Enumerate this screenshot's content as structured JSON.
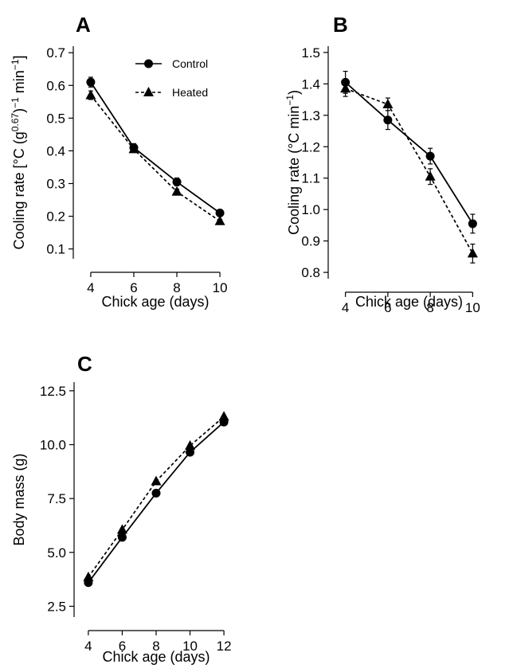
{
  "chart_data": [
    {
      "panel": "A",
      "type": "line",
      "xlabel": "Chick age (days)",
      "ylabel_parts": [
        "Cooling rate [°C (g",
        "0.67",
        ")",
        "−1",
        " min",
        "−1",
        "]"
      ],
      "xlim": [
        3.3,
        10.7
      ],
      "ylim": [
        0.07,
        0.72
      ],
      "xticks": [
        4,
        6,
        8,
        10
      ],
      "yticks": [
        "0.1",
        "0.2",
        "0.3",
        "0.4",
        "0.5",
        "0.6",
        "0.7"
      ],
      "legend": {
        "position": "top",
        "entries": [
          "Control",
          "Heated"
        ]
      },
      "x": [
        4,
        6,
        8,
        10
      ],
      "series": [
        {
          "name": "Control",
          "marker": "circle",
          "line": "solid",
          "values": [
            0.61,
            0.41,
            0.305,
            0.21
          ],
          "errors": [
            0.015,
            0.012,
            0.012,
            0.006
          ]
        },
        {
          "name": "Heated",
          "marker": "triangle",
          "line": "dashed",
          "values": [
            0.57,
            0.405,
            0.275,
            0.185
          ],
          "errors": [
            0.013,
            0.01,
            0.008,
            0.005
          ]
        }
      ]
    },
    {
      "panel": "B",
      "type": "line",
      "xlabel": "Chick age (days)",
      "ylabel_parts": [
        "Cooling rate (°C min",
        "−1",
        ")"
      ],
      "xlim": [
        3.3,
        10.7
      ],
      "ylim": [
        0.78,
        1.52
      ],
      "xticks": [
        4,
        6,
        8,
        10
      ],
      "yticks": [
        "0.8",
        "0.9",
        "1.0",
        "1.1",
        "1.2",
        "1.3",
        "1.4",
        "1.5"
      ],
      "x": [
        4,
        6,
        8,
        10
      ],
      "series": [
        {
          "name": "Control",
          "marker": "circle",
          "line": "solid",
          "values": [
            1.405,
            1.285,
            1.17,
            0.955
          ],
          "errors": [
            0.035,
            0.03,
            0.025,
            0.03
          ]
        },
        {
          "name": "Heated",
          "marker": "triangle",
          "line": "dashed",
          "values": [
            1.385,
            1.335,
            1.105,
            0.86
          ],
          "errors": [
            0.025,
            0.02,
            0.025,
            0.03
          ]
        }
      ]
    },
    {
      "panel": "C",
      "type": "line",
      "xlabel": "Chick age (days)",
      "ylabel_parts": [
        "Body mass (g)"
      ],
      "xlim": [
        3.3,
        12.7
      ],
      "ylim": [
        2.0,
        12.9
      ],
      "xticks": [
        4,
        6,
        8,
        10,
        12
      ],
      "yticks": [
        "2.5",
        "5.0",
        "7.5",
        "10.0",
        "12.5"
      ],
      "x": [
        4,
        6,
        8,
        10,
        12
      ],
      "series": [
        {
          "name": "Control",
          "marker": "circle",
          "line": "solid",
          "values": [
            3.6,
            5.7,
            7.75,
            9.65,
            11.05
          ],
          "errors": [
            0,
            0,
            0,
            0,
            0
          ]
        },
        {
          "name": "Heated",
          "marker": "triangle",
          "line": "dashed",
          "values": [
            3.85,
            6.05,
            8.3,
            9.95,
            11.3
          ],
          "errors": [
            0,
            0,
            0,
            0,
            0
          ]
        }
      ]
    }
  ]
}
